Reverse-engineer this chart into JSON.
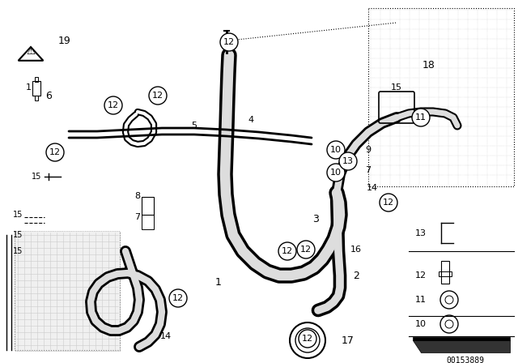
{
  "bg_color": "#ffffff",
  "fig_width": 6.4,
  "fig_height": 4.48,
  "dpi": 100,
  "doc_number": "00153889",
  "line_color": "#000000"
}
